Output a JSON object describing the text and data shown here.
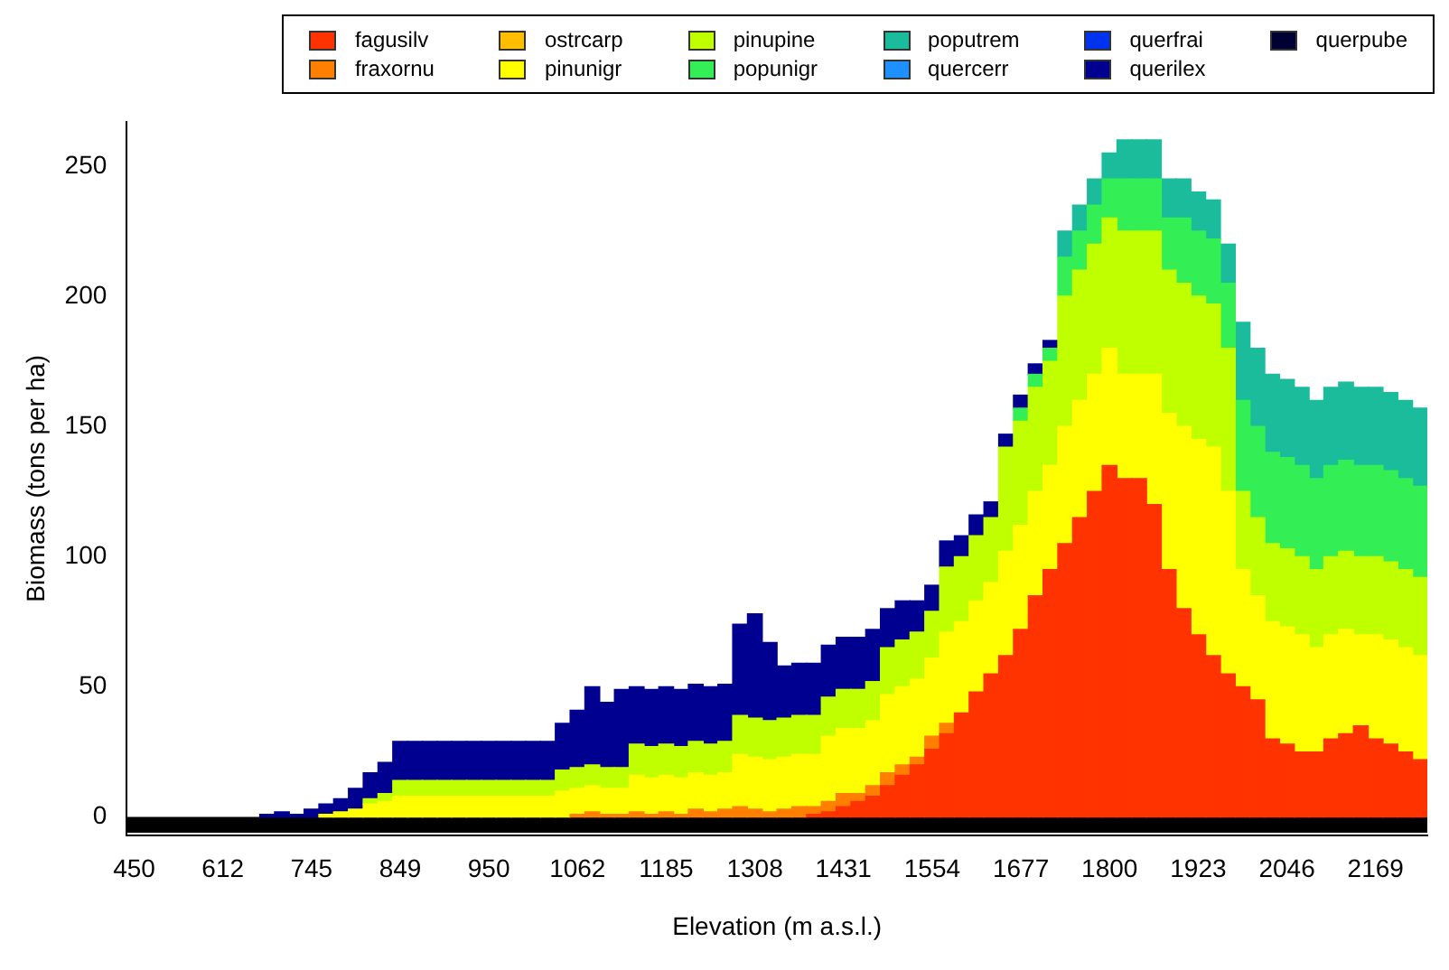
{
  "chart_data": {
    "type": "bar",
    "stacked": true,
    "xlabel": "Elevation (m a.s.l.)",
    "ylabel": "Biomass (tons per ha)",
    "categories": [
      "450",
      null,
      null,
      null,
      null,
      null,
      "612",
      null,
      null,
      null,
      null,
      null,
      "745",
      null,
      null,
      null,
      null,
      null,
      "849",
      null,
      null,
      null,
      null,
      null,
      "950",
      null,
      null,
      null,
      null,
      null,
      "1062",
      null,
      null,
      null,
      null,
      null,
      "1185",
      null,
      null,
      null,
      null,
      null,
      "1308",
      null,
      null,
      null,
      null,
      null,
      "1431",
      null,
      null,
      null,
      null,
      null,
      "1554",
      null,
      null,
      null,
      null,
      null,
      "1677",
      null,
      null,
      null,
      null,
      null,
      "1800",
      null,
      null,
      null,
      null,
      null,
      "1923",
      null,
      null,
      null,
      null,
      null,
      "2046",
      null,
      null,
      null,
      null,
      null,
      "2169",
      null,
      null,
      null
    ],
    "ylim": [
      -7,
      267
    ],
    "yticks": [
      0,
      50,
      100,
      150,
      200,
      250
    ],
    "grid": false,
    "legend": "top",
    "series": [
      {
        "name": "fagusilv",
        "color": "#ff3300",
        "values": [
          null,
          null,
          null,
          null,
          null,
          null,
          null,
          null,
          null,
          null,
          null,
          null,
          null,
          null,
          null,
          null,
          null,
          null,
          null,
          null,
          null,
          null,
          null,
          null,
          null,
          null,
          null,
          null,
          null,
          null,
          null,
          null,
          null,
          null,
          null,
          null,
          null,
          null,
          null,
          null,
          null,
          null,
          null,
          null,
          null,
          null,
          1,
          2,
          4,
          6,
          8,
          12,
          16,
          20,
          26,
          32,
          40,
          48,
          55,
          62,
          72,
          85,
          95,
          105,
          115,
          125,
          135,
          130,
          130,
          120,
          95,
          80,
          70,
          62,
          55,
          50,
          45,
          30,
          28,
          25,
          25,
          30,
          32,
          35,
          30,
          28,
          25,
          22
        ]
      },
      {
        "name": "fraxornu",
        "color": "#ff8000",
        "values": [
          null,
          null,
          null,
          null,
          null,
          null,
          null,
          null,
          null,
          null,
          null,
          null,
          null,
          null,
          null,
          null,
          null,
          null,
          null,
          null,
          null,
          null,
          null,
          null,
          null,
          null,
          null,
          null,
          null,
          null,
          1,
          2,
          1,
          1,
          2,
          1,
          2,
          1,
          3,
          2,
          3,
          4,
          3,
          2,
          3,
          4,
          3,
          4,
          5,
          3,
          4,
          5,
          4,
          3,
          5,
          4,
          null,
          null,
          null,
          null,
          null,
          null,
          null,
          null,
          null,
          null,
          null,
          null,
          null,
          null,
          null,
          null,
          null,
          null,
          null,
          null,
          null,
          null,
          null,
          null,
          null,
          null,
          null,
          null,
          null,
          null,
          null,
          null
        ]
      },
      {
        "name": "ostrcarp",
        "color": "#ffbf00",
        "values": [
          null,
          null,
          null,
          null,
          null,
          null,
          null,
          null,
          null,
          null,
          null,
          null,
          null,
          null,
          null,
          null,
          null,
          null,
          null,
          null,
          null,
          null,
          null,
          null,
          null,
          null,
          null,
          null,
          null,
          null,
          null,
          null,
          null,
          null,
          null,
          null,
          null,
          null,
          null,
          null,
          null,
          null,
          null,
          null,
          null,
          null,
          null,
          null,
          null,
          null,
          null,
          null,
          null,
          null,
          null,
          null,
          null,
          null,
          null,
          null,
          null,
          null,
          null,
          null,
          null,
          null,
          null,
          null,
          null,
          null,
          null,
          null,
          null,
          null,
          null,
          null,
          null,
          null,
          null,
          null,
          null,
          null,
          null,
          null,
          null,
          null,
          null,
          null
        ]
      },
      {
        "name": "pinunigr",
        "color": "#ffff00",
        "values": [
          null,
          null,
          null,
          null,
          null,
          null,
          null,
          null,
          null,
          null,
          null,
          null,
          null,
          1,
          2,
          3,
          5,
          6,
          8,
          8,
          8,
          8,
          8,
          8,
          8,
          8,
          8,
          8,
          8,
          10,
          10,
          10,
          10,
          10,
          14,
          14,
          14,
          14,
          14,
          14,
          14,
          20,
          20,
          20,
          20,
          20,
          20,
          25,
          25,
          25,
          25,
          30,
          30,
          30,
          30,
          35,
          35,
          35,
          35,
          40,
          40,
          40,
          40,
          45,
          45,
          45,
          45,
          40,
          40,
          50,
          60,
          70,
          75,
          80,
          70,
          45,
          40,
          45,
          45,
          45,
          40,
          40,
          40,
          35,
          40,
          40,
          40,
          40
        ]
      },
      {
        "name": "pinupine",
        "color": "#bfff00",
        "values": [
          null,
          null,
          null,
          null,
          null,
          null,
          null,
          null,
          null,
          null,
          null,
          null,
          null,
          null,
          null,
          null,
          2,
          3,
          6,
          6,
          6,
          6,
          6,
          6,
          6,
          6,
          6,
          6,
          6,
          8,
          8,
          8,
          8,
          8,
          12,
          12,
          12,
          12,
          12,
          12,
          12,
          15,
          15,
          15,
          15,
          15,
          15,
          15,
          15,
          15,
          15,
          18,
          18,
          18,
          18,
          25,
          25,
          25,
          25,
          40,
          40,
          40,
          40,
          50,
          50,
          50,
          50,
          55,
          55,
          55,
          55,
          55,
          55,
          55,
          55,
          30,
          30,
          30,
          30,
          30,
          30,
          30,
          30,
          30,
          30,
          30,
          30,
          30
        ]
      },
      {
        "name": "popunigr",
        "color": "#33ee55",
        "values": [
          null,
          null,
          null,
          null,
          null,
          null,
          null,
          null,
          null,
          null,
          null,
          null,
          null,
          null,
          null,
          null,
          null,
          null,
          null,
          null,
          null,
          null,
          null,
          null,
          null,
          null,
          null,
          null,
          null,
          null,
          null,
          null,
          null,
          null,
          null,
          null,
          null,
          null,
          null,
          null,
          null,
          null,
          null,
          null,
          null,
          null,
          null,
          null,
          null,
          null,
          null,
          null,
          null,
          null,
          null,
          null,
          null,
          null,
          null,
          null,
          5,
          5,
          5,
          15,
          15,
          15,
          15,
          20,
          20,
          20,
          20,
          25,
          25,
          25,
          25,
          35,
          35,
          35,
          35,
          35,
          35,
          35,
          35,
          35,
          35,
          35,
          35,
          35
        ]
      },
      {
        "name": "poputrem",
        "color": "#1abc9c",
        "values": [
          null,
          null,
          null,
          null,
          null,
          null,
          null,
          null,
          null,
          null,
          null,
          null,
          null,
          null,
          null,
          null,
          null,
          null,
          null,
          null,
          null,
          null,
          null,
          null,
          null,
          null,
          null,
          null,
          null,
          null,
          null,
          null,
          null,
          null,
          null,
          null,
          null,
          null,
          null,
          null,
          null,
          null,
          null,
          null,
          null,
          null,
          null,
          null,
          null,
          null,
          null,
          null,
          null,
          null,
          null,
          null,
          null,
          null,
          null,
          null,
          null,
          null,
          null,
          10,
          10,
          10,
          10,
          15,
          15,
          15,
          15,
          15,
          15,
          15,
          15,
          30,
          30,
          30,
          30,
          30,
          30,
          30,
          30,
          30,
          30,
          30,
          30,
          30
        ]
      },
      {
        "name": "quercerr",
        "color": "#1e90ff",
        "values": [
          null,
          null,
          null,
          null,
          null,
          null,
          null,
          null,
          null,
          null,
          null,
          null,
          null,
          null,
          null,
          null,
          null,
          null,
          null,
          null,
          null,
          null,
          null,
          null,
          null,
          null,
          null,
          null,
          null,
          null,
          null,
          null,
          null,
          null,
          null,
          null,
          null,
          null,
          null,
          null,
          null,
          null,
          null,
          null,
          null,
          null,
          null,
          null,
          null,
          null,
          null,
          null,
          null,
          null,
          null,
          null,
          null,
          null,
          null,
          null,
          null,
          null,
          null,
          null,
          null,
          null,
          null,
          null,
          null,
          null,
          null,
          null,
          null,
          null,
          null,
          null,
          null,
          null,
          null,
          null,
          null,
          null,
          null,
          null,
          null,
          null,
          null,
          null
        ]
      },
      {
        "name": "querfrai",
        "color": "#0033ee",
        "values": [
          null,
          null,
          null,
          null,
          null,
          null,
          null,
          null,
          null,
          null,
          null,
          null,
          null,
          null,
          null,
          null,
          null,
          null,
          null,
          null,
          null,
          null,
          null,
          null,
          null,
          null,
          null,
          null,
          null,
          null,
          null,
          null,
          null,
          null,
          null,
          null,
          null,
          null,
          null,
          null,
          null,
          null,
          null,
          null,
          null,
          null,
          null,
          null,
          null,
          null,
          null,
          null,
          null,
          null,
          null,
          null,
          null,
          null,
          null,
          null,
          null,
          null,
          null,
          null,
          null,
          null,
          null,
          null,
          null,
          null,
          null,
          null,
          null,
          null,
          null,
          null,
          null,
          null,
          null,
          null,
          null,
          null,
          null,
          null,
          null,
          null,
          null,
          null
        ]
      },
      {
        "name": "querilex",
        "color": "#000090",
        "values": [
          null,
          null,
          null,
          null,
          null,
          null,
          null,
          null,
          null,
          1,
          2,
          1,
          3,
          4,
          5,
          8,
          10,
          12,
          15,
          15,
          15,
          15,
          15,
          15,
          15,
          15,
          15,
          15,
          15,
          18,
          22,
          30,
          25,
          30,
          22,
          22,
          22,
          22,
          22,
          22,
          22,
          35,
          40,
          30,
          20,
          20,
          20,
          20,
          20,
          20,
          20,
          15,
          15,
          12,
          10,
          10,
          8,
          8,
          6,
          5,
          5,
          4,
          3,
          null,
          null,
          null,
          null,
          null,
          null,
          null,
          null,
          null,
          null,
          null,
          null,
          null,
          null,
          null,
          null,
          null,
          null,
          null,
          null,
          null,
          null,
          null,
          null,
          null
        ]
      },
      {
        "name": "querpube",
        "color": "#000033",
        "values": [
          null,
          null,
          null,
          null,
          null,
          null,
          null,
          null,
          null,
          null,
          null,
          null,
          null,
          null,
          null,
          null,
          null,
          null,
          null,
          null,
          null,
          null,
          null,
          null,
          null,
          null,
          null,
          null,
          null,
          null,
          null,
          null,
          null,
          null,
          null,
          null,
          null,
          null,
          null,
          null,
          null,
          null,
          null,
          null,
          null,
          null,
          null,
          null,
          null,
          null,
          null,
          null,
          null,
          null,
          null,
          null,
          null,
          null,
          null,
          null,
          null,
          null,
          null,
          null,
          null,
          null,
          null,
          null,
          null,
          null,
          null,
          null,
          null,
          null,
          null,
          null,
          null,
          null,
          null,
          null,
          null,
          null,
          null,
          null,
          null,
          null,
          null,
          null
        ]
      }
    ],
    "bands": [
      {
        "axis": "y",
        "from": -6,
        "to": 0,
        "color": "#000000"
      }
    ]
  }
}
